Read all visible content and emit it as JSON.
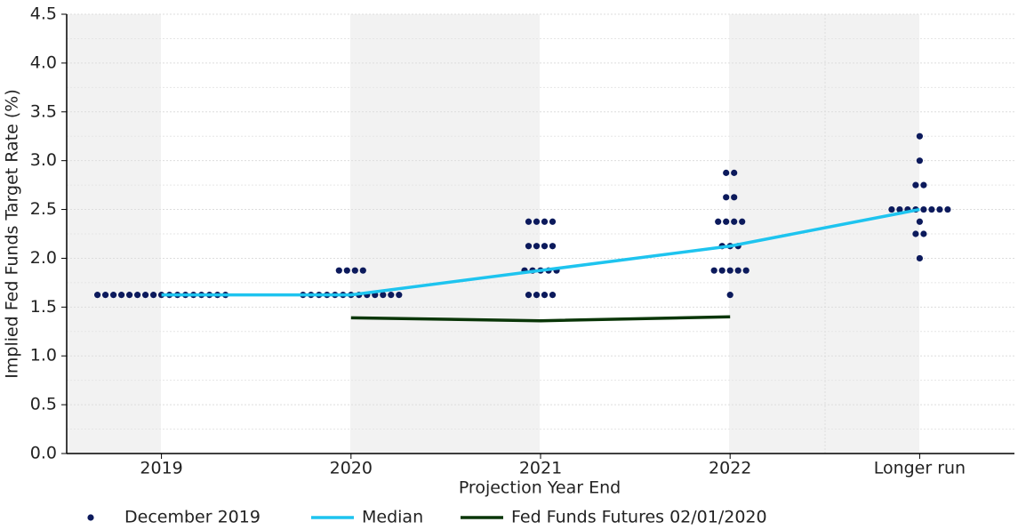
{
  "chart_data": {
    "type": "dot",
    "xlabel": "Projection Year End",
    "ylabel": "Implied Fed Funds Target Rate (%)",
    "categories": [
      "2019",
      "2020",
      "2021",
      "2022",
      "Longer run"
    ],
    "ylim": [
      0,
      4.5
    ],
    "yticks": [
      {
        "value": 0,
        "label": "0.0"
      },
      0.5,
      {
        "value": 1,
        "label": "1.0"
      },
      1.5,
      {
        "value": 2,
        "label": "2.0"
      },
      2.5,
      {
        "value": 3,
        "label": "3.0"
      },
      3.5,
      {
        "value": 4,
        "label": "4.0"
      },
      4.5
    ],
    "grid": true,
    "legend": "bottom",
    "series": [
      {
        "name": "December 2019",
        "type": "dot",
        "color": "#0c1a5c",
        "values": [
          [
            1.625,
            1.625,
            1.625,
            1.625,
            1.625,
            1.625,
            1.625,
            1.625,
            1.625,
            1.625,
            1.625,
            1.625,
            1.625,
            1.625,
            1.625,
            1.625,
            1.625
          ],
          [
            1.875,
            1.875,
            1.875,
            1.875,
            1.625,
            1.625,
            1.625,
            1.625,
            1.625,
            1.625,
            1.625,
            1.625,
            1.625,
            1.625,
            1.625,
            1.625,
            1.625
          ],
          [
            2.375,
            2.375,
            2.375,
            2.375,
            2.125,
            2.125,
            2.125,
            2.125,
            1.875,
            1.875,
            1.875,
            1.875,
            1.875,
            1.625,
            1.625,
            1.625,
            1.625
          ],
          [
            2.875,
            2.875,
            2.625,
            2.625,
            2.375,
            2.375,
            2.375,
            2.375,
            2.125,
            2.125,
            2.125,
            1.875,
            1.875,
            1.875,
            1.875,
            1.875,
            1.625
          ],
          [
            3.25,
            3.0,
            2.75,
            2.75,
            2.5,
            2.5,
            2.5,
            2.5,
            2.5,
            2.5,
            2.5,
            2.5,
            2.375,
            2.25,
            2.25,
            2.0
          ]
        ]
      },
      {
        "name": "Median",
        "type": "line",
        "color": "#1ec4ef",
        "values": [
          1.625,
          1.625,
          1.875,
          2.125,
          2.5
        ]
      },
      {
        "name": "Fed Funds Futures 02/01/2020",
        "type": "line",
        "color": "#0a3608",
        "values": [
          null,
          1.39,
          1.36,
          1.4,
          null
        ]
      }
    ]
  }
}
